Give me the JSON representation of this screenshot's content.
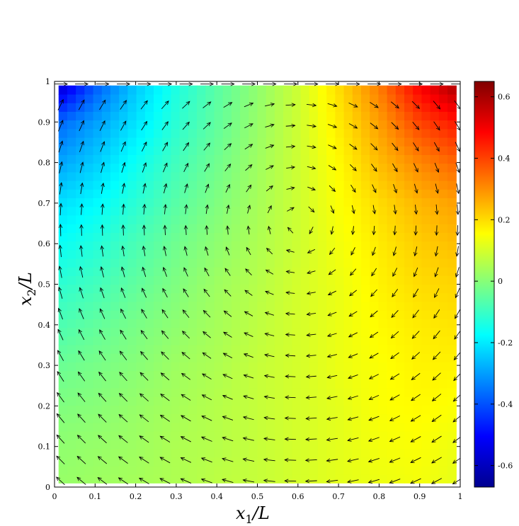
{
  "chart_data": {
    "type": "heatmap",
    "overlay": "quiver",
    "title": "",
    "xlabel": {
      "var": "x",
      "sub": "1",
      "rest": "/L"
    },
    "ylabel": {
      "var": "x",
      "sub": "2",
      "rest": "/L"
    },
    "xlim": [
      0,
      1
    ],
    "ylim": [
      0,
      1
    ],
    "x_ticks": [
      "0",
      "0.1",
      "0.2",
      "0.3",
      "0.4",
      "0.5",
      "0.6",
      "0.7",
      "0.8",
      "0.9",
      "1"
    ],
    "y_ticks": [
      "0",
      "0.1",
      "0.2",
      "0.3",
      "0.4",
      "0.5",
      "0.6",
      "0.7",
      "0.8",
      "0.9",
      "1"
    ],
    "x_tick_values": [
      0,
      0.1,
      0.2,
      0.3,
      0.4,
      0.5,
      0.6,
      0.7,
      0.8,
      0.9,
      1
    ],
    "y_tick_values": [
      0,
      0.1,
      0.2,
      0.3,
      0.4,
      0.5,
      0.6,
      0.7,
      0.8,
      0.9,
      1
    ],
    "colorbar": {
      "colormap": "jet",
      "clim": [
        -0.67,
        0.65
      ],
      "ticks": [
        "-0.6",
        "-0.4",
        "-0.2",
        "0",
        "0.2",
        "0.4",
        "0.6"
      ],
      "tick_values": [
        -0.6,
        -0.4,
        -0.2,
        0,
        0.2,
        0.4,
        0.6
      ]
    },
    "field": {
      "description_grid_x": [
        0.0,
        0.1,
        0.2,
        0.3,
        0.4,
        0.5,
        0.6,
        0.7,
        0.8,
        0.9,
        1.0
      ],
      "description_grid_y": [
        0.0,
        0.1,
        0.2,
        0.3,
        0.4,
        0.5,
        0.6,
        0.7,
        0.8,
        0.9,
        1.0
      ],
      "values": [
        [
          0.02,
          0.03,
          0.04,
          0.05,
          0.07,
          0.08,
          0.1,
          0.12,
          0.13,
          0.14,
          0.12
        ],
        [
          0.01,
          0.02,
          0.03,
          0.05,
          0.06,
          0.08,
          0.1,
          0.12,
          0.14,
          0.15,
          0.13
        ],
        [
          -0.01,
          0.0,
          0.02,
          0.04,
          0.06,
          0.08,
          0.1,
          0.12,
          0.15,
          0.16,
          0.15
        ],
        [
          -0.04,
          -0.02,
          0.0,
          0.03,
          0.05,
          0.08,
          0.1,
          0.13,
          0.15,
          0.17,
          0.17
        ],
        [
          -0.08,
          -0.05,
          -0.02,
          0.01,
          0.04,
          0.07,
          0.1,
          0.13,
          0.16,
          0.18,
          0.19
        ],
        [
          -0.12,
          -0.09,
          -0.05,
          -0.01,
          0.03,
          0.06,
          0.1,
          0.13,
          0.17,
          0.2,
          0.21
        ],
        [
          -0.17,
          -0.13,
          -0.08,
          -0.03,
          0.01,
          0.05,
          0.09,
          0.14,
          0.18,
          0.22,
          0.24
        ],
        [
          -0.22,
          -0.18,
          -0.12,
          -0.06,
          -0.01,
          0.04,
          0.09,
          0.15,
          0.2,
          0.25,
          0.28
        ],
        [
          -0.3,
          -0.24,
          -0.16,
          -0.09,
          -0.03,
          0.03,
          0.09,
          0.16,
          0.24,
          0.31,
          0.36
        ],
        [
          -0.38,
          -0.3,
          -0.21,
          -0.12,
          -0.05,
          0.02,
          0.09,
          0.18,
          0.28,
          0.4,
          0.46
        ],
        [
          -0.62,
          -0.4,
          -0.25,
          -0.14,
          -0.06,
          0.01,
          0.09,
          0.2,
          0.33,
          0.5,
          0.62
        ]
      ]
    },
    "vector_field": "lid-driven cavity: rightward flow along top lid, clockwise recirculation vortex centered near (0.6, 0.65)"
  }
}
